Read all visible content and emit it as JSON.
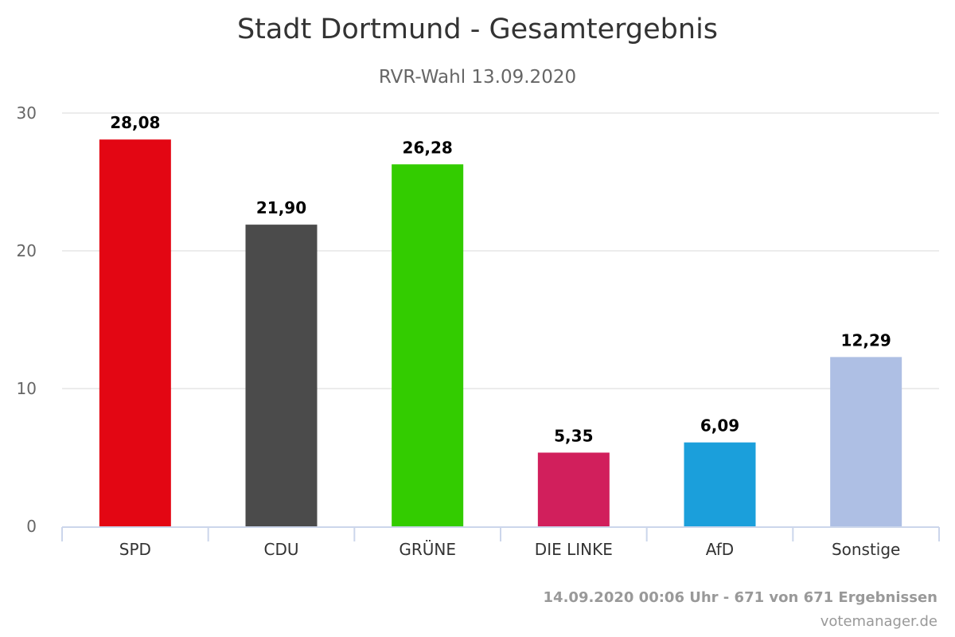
{
  "chart_data": {
    "type": "bar",
    "title": "Stadt Dortmund - Gesamtergebnis",
    "subtitle": "RVR-Wahl 13.09.2020",
    "xlabel": "",
    "ylabel": "",
    "categories": [
      "SPD",
      "CDU",
      "GRÜNE",
      "DIE LINKE",
      "AfD",
      "Sonstige"
    ],
    "values": [
      28.08,
      21.9,
      26.28,
      5.35,
      6.09,
      12.29
    ],
    "data_labels": [
      "28,08",
      "21,90",
      "26,28",
      "5,35",
      "6,09",
      "12,29"
    ],
    "colors": [
      "#e30613",
      "#4b4b4b",
      "#33cc00",
      "#d11f5c",
      "#1b9fdb",
      "#aebfe4"
    ],
    "ylim": [
      0,
      30
    ],
    "yticks": [
      0,
      10,
      20,
      30
    ],
    "grid": true,
    "legend": "none"
  },
  "footer": {
    "status": "14.09.2020 00:06 Uhr - 671 von 671 Ergebnissen",
    "source": "votemanager.de"
  }
}
